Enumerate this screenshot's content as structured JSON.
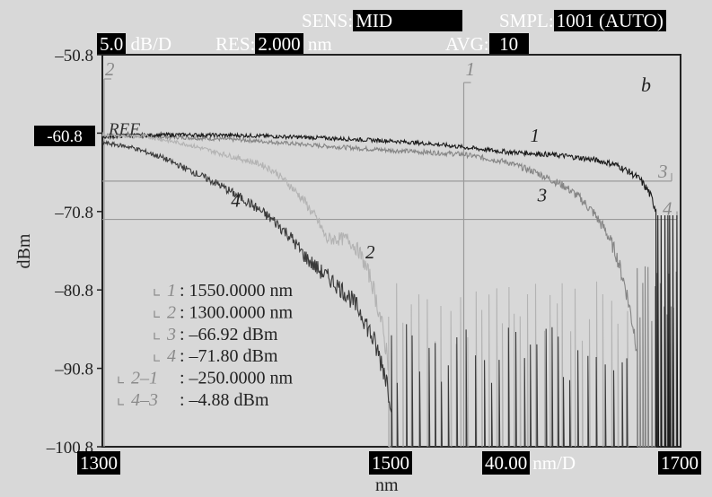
{
  "header": {
    "sens_label": "SENS:",
    "sens_value": "MID",
    "smpl_label": "SMPL:",
    "smpl_value": "1001 (AUTO)",
    "scale_value": "5.0",
    "scale_unit": "dB/D",
    "res_label": "RES:",
    "res_value": "2.000",
    "res_unit": "nm",
    "avg_label": "AVG:",
    "avg_value": "10"
  },
  "footer": {
    "x_start": "1300",
    "x_center": "1500",
    "span_value": "40.00",
    "span_unit": "nm/D",
    "x_end": "1700",
    "xlabel": "nm"
  },
  "ref_label": "REF",
  "ref_value": "-60.8",
  "panel_letter": "b",
  "markers": {
    "m1_label": "1",
    "m2_label": "2",
    "m3_label": "3",
    "m4_label": "4"
  },
  "readout": [
    {
      "tag": "1",
      "text": ": 1550.0000 nm"
    },
    {
      "tag": "2",
      "text": ": 1300.0000 nm"
    },
    {
      "tag": "3",
      "text": ": –66.92 dBm"
    },
    {
      "tag": "4",
      "text": ": –71.80 dBm"
    },
    {
      "tag": "2–1",
      "text": ": –250.0000 nm"
    },
    {
      "tag": "4–3",
      "text": ": –4.88 dBm"
    }
  ],
  "chart_data": {
    "type": "line",
    "xlabel": "nm",
    "ylabel": "dBm",
    "xlim": [
      1300,
      1700
    ],
    "ylim": [
      -100.8,
      -50.8
    ],
    "yticks": [
      "–50.8",
      "–60.8",
      "–70.8",
      "–80.8",
      "–90.8",
      "–100.8"
    ],
    "ytick_values": [
      -50.8,
      -60.8,
      -70.8,
      -80.8,
      -90.8,
      -100.8
    ],
    "grid": false,
    "markers": {
      "x1": 1550,
      "x2": 1300,
      "y3": -66.92,
      "y4": -71.8
    },
    "series": [
      {
        "name": "1",
        "color": "#1a1a1a",
        "x": [
          1300,
          1320,
          1350,
          1400,
          1450,
          1500,
          1530,
          1550,
          1580,
          1600,
          1620,
          1640,
          1655,
          1665,
          1672,
          1678,
          1683
        ],
        "values": [
          -61.3,
          -61.1,
          -61.0,
          -61.1,
          -61.4,
          -61.8,
          -62.2,
          -62.6,
          -63.2,
          -63.4,
          -63.7,
          -64.2,
          -64.8,
          -65.8,
          -66.7,
          -68.3,
          -70.5
        ]
      },
      {
        "name": "2",
        "color": "#b3b3b3",
        "x": [
          1300,
          1330,
          1360,
          1390,
          1410,
          1420,
          1430,
          1440,
          1450,
          1455,
          1462,
          1470,
          1478,
          1486,
          1492,
          1498
        ],
        "values": [
          -61.0,
          -61.2,
          -62.3,
          -63.8,
          -64.8,
          -65.8,
          -67.5,
          -69.5,
          -72.3,
          -74.3,
          -74.3,
          -74.3,
          -76.0,
          -79.5,
          -84.0,
          -90.0
        ]
      },
      {
        "name": "3",
        "color": "#858585",
        "x": [
          1300,
          1350,
          1400,
          1450,
          1500,
          1550,
          1580,
          1600,
          1620,
          1630,
          1640,
          1648,
          1655,
          1662,
          1670
        ],
        "values": [
          -61.1,
          -61.3,
          -61.7,
          -62.4,
          -63.0,
          -63.5,
          -64.5,
          -65.8,
          -67.6,
          -69.0,
          -71.0,
          -73.2,
          -76.0,
          -80.5,
          -88.0
        ]
      },
      {
        "name": "4",
        "color": "#3a3a3a",
        "x": [
          1300,
          1320,
          1340,
          1360,
          1380,
          1400,
          1410,
          1420,
          1430,
          1440,
          1450,
          1460,
          1470,
          1480,
          1488,
          1495,
          1500
        ],
        "values": [
          -62.0,
          -62.6,
          -63.8,
          -65.5,
          -67.3,
          -69.5,
          -70.8,
          -72.2,
          -74.0,
          -76.5,
          -78.3,
          -79.8,
          -81.5,
          -84.0,
          -87.5,
          -91.0,
          -95.0
        ]
      }
    ]
  }
}
